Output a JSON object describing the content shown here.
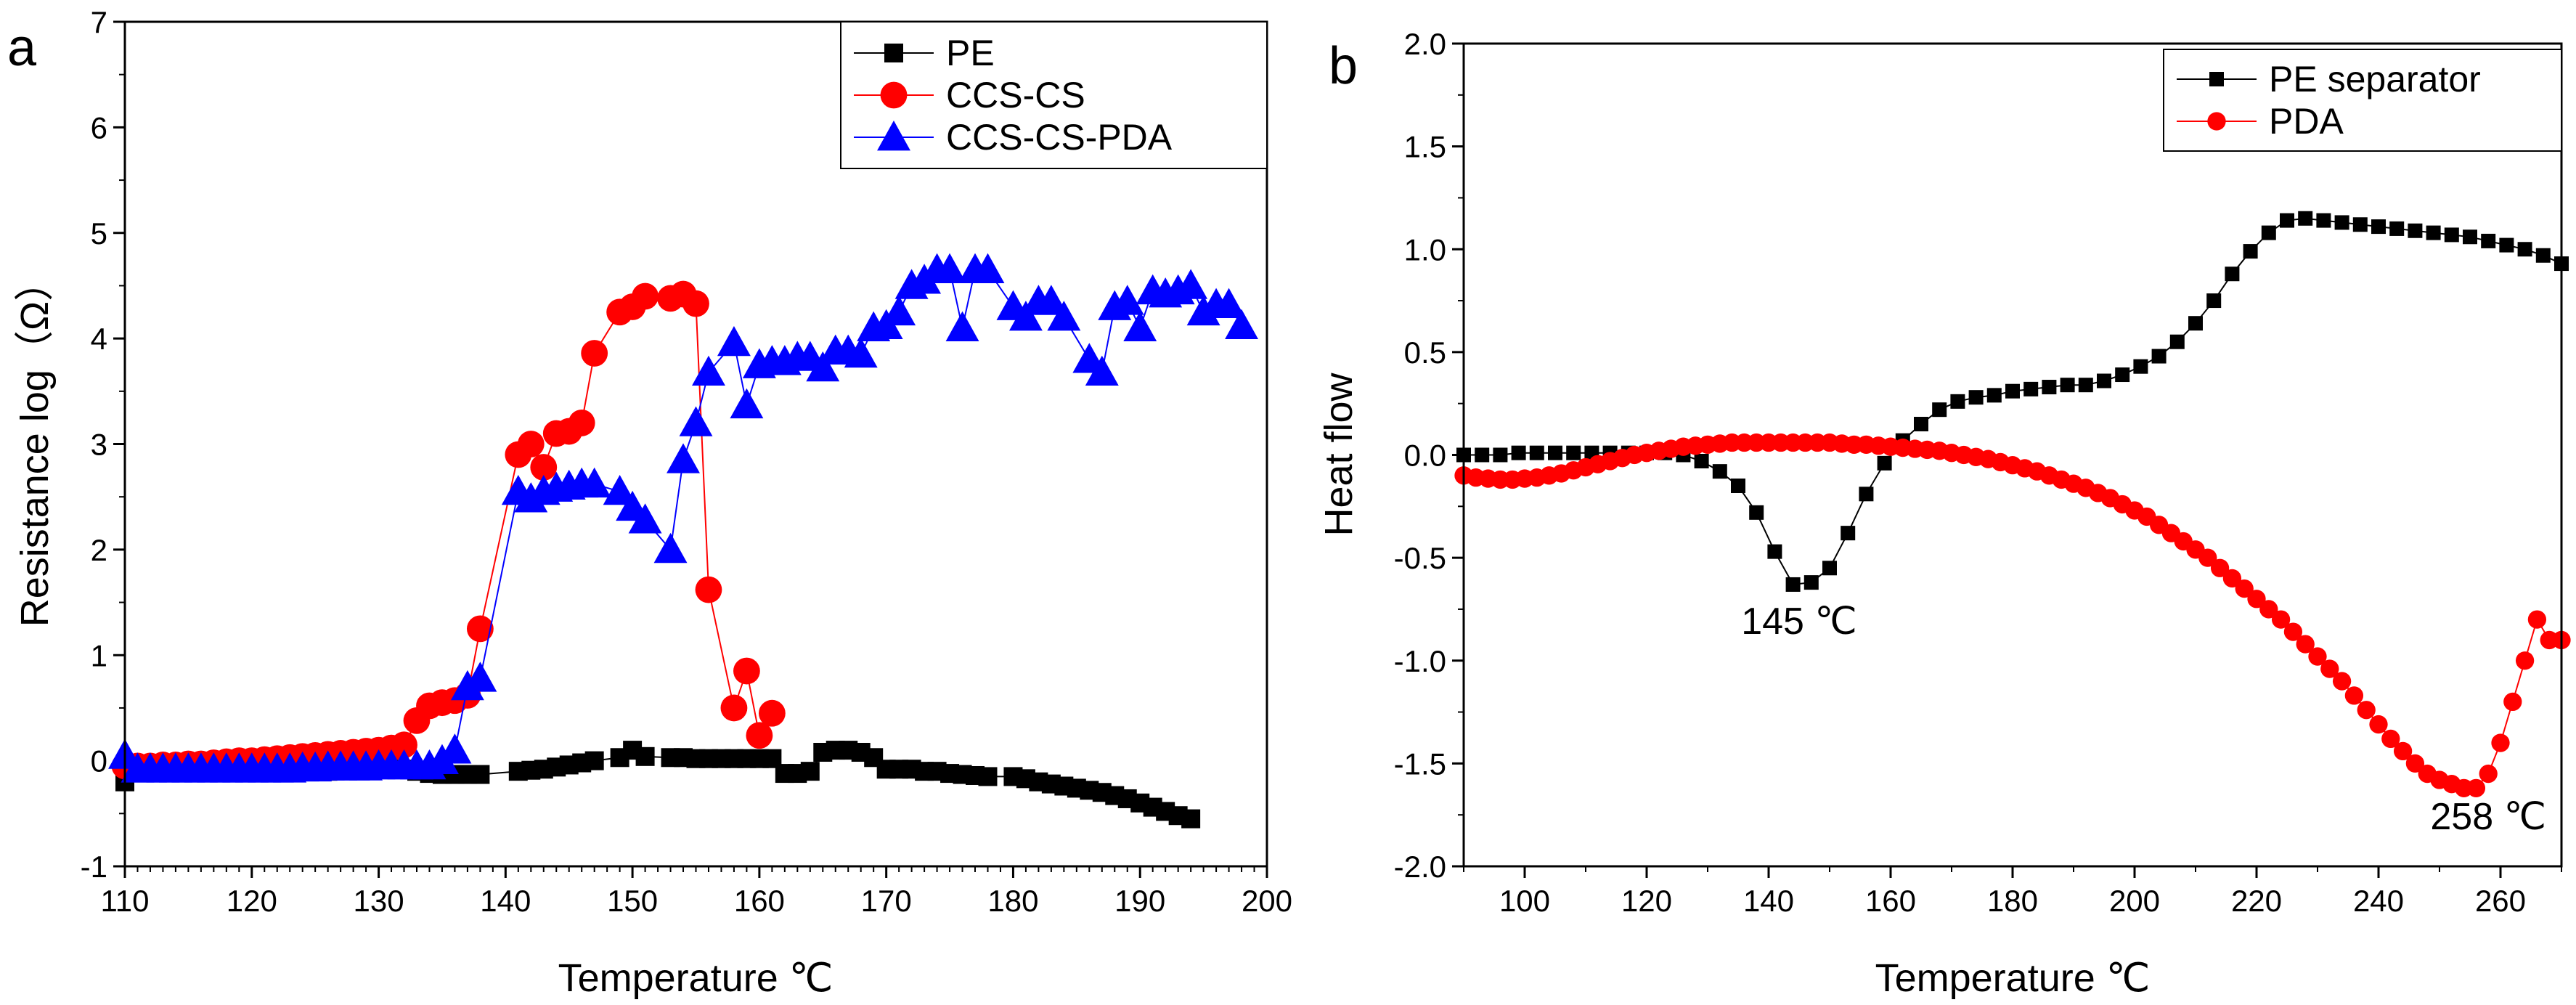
{
  "chart_data": [
    {
      "panel_label": "a",
      "type": "line",
      "title": "",
      "xlabel": "Temperature ℃",
      "ylabel": "Resistance log（Ω）",
      "xlim": [
        110,
        200
      ],
      "ylim": [
        -1,
        7
      ],
      "xticks": [
        110,
        120,
        130,
        140,
        150,
        160,
        170,
        180,
        190,
        200
      ],
      "yticks": [
        -1,
        0,
        1,
        2,
        3,
        4,
        5,
        6,
        7
      ],
      "legend_position": "top-right",
      "series": [
        {
          "name": "PE",
          "color": "#000000",
          "marker": "square",
          "x": [
            110,
            111,
            112,
            113,
            114,
            115,
            116,
            117,
            118,
            119,
            120,
            121,
            122,
            123,
            124,
            125,
            126,
            127,
            128,
            129,
            130,
            131,
            132,
            133,
            134,
            135,
            136,
            137,
            138,
            141,
            142,
            143,
            144,
            145,
            146,
            147,
            149,
            150,
            151,
            153,
            154,
            155,
            156,
            157,
            158,
            159,
            160,
            161,
            162,
            163,
            164,
            165,
            166,
            167,
            168,
            169,
            170,
            171,
            172,
            173,
            174,
            175,
            176,
            177,
            178,
            180,
            181,
            182,
            183,
            184,
            185,
            186,
            187,
            188,
            189,
            190,
            191,
            192,
            193,
            194
          ],
          "y": [
            -0.2,
            -0.1,
            -0.1,
            -0.1,
            -0.1,
            -0.1,
            -0.1,
            -0.1,
            -0.1,
            -0.1,
            -0.1,
            -0.1,
            -0.1,
            -0.1,
            -0.1,
            -0.1,
            -0.1,
            -0.08,
            -0.08,
            -0.08,
            -0.08,
            -0.08,
            -0.08,
            -0.1,
            -0.12,
            -0.13,
            -0.13,
            -0.13,
            -0.13,
            -0.1,
            -0.09,
            -0.08,
            -0.06,
            -0.04,
            -0.02,
            0.0,
            0.03,
            0.1,
            0.04,
            0.03,
            0.03,
            0.02,
            0.02,
            0.02,
            0.02,
            0.02,
            0.02,
            0.02,
            -0.12,
            -0.12,
            -0.1,
            0.08,
            0.1,
            0.1,
            0.08,
            0.03,
            -0.08,
            -0.08,
            -0.08,
            -0.1,
            -0.1,
            -0.12,
            -0.13,
            -0.14,
            -0.15,
            -0.15,
            -0.17,
            -0.2,
            -0.22,
            -0.24,
            -0.26,
            -0.28,
            -0.3,
            -0.33,
            -0.36,
            -0.4,
            -0.44,
            -0.48,
            -0.52,
            -0.55
          ]
        },
        {
          "name": "CCS-CS",
          "color": "#ff0000",
          "marker": "circle",
          "x": [
            110,
            111,
            112,
            113,
            114,
            115,
            116,
            117,
            118,
            119,
            120,
            121,
            122,
            123,
            124,
            125,
            126,
            127,
            128,
            129,
            130,
            131,
            132,
            133,
            134,
            135,
            136,
            137,
            138,
            141,
            142,
            143,
            144,
            145,
            146,
            147,
            149,
            150,
            151,
            153,
            154,
            155,
            156,
            158,
            159,
            160,
            161
          ],
          "y": [
            -0.05,
            -0.05,
            -0.05,
            -0.04,
            -0.04,
            -0.03,
            -0.03,
            -0.02,
            -0.01,
            0.0,
            0.0,
            0.01,
            0.02,
            0.03,
            0.04,
            0.05,
            0.06,
            0.07,
            0.08,
            0.09,
            0.1,
            0.12,
            0.15,
            0.38,
            0.52,
            0.55,
            0.57,
            0.62,
            1.25,
            2.9,
            3.0,
            2.78,
            3.1,
            3.12,
            3.2,
            3.86,
            4.25,
            4.3,
            4.4,
            4.38,
            4.42,
            4.33,
            1.62,
            0.5,
            0.85,
            0.24,
            0.45
          ]
        },
        {
          "name": "CCS-CS-PDA",
          "color": "#0000ff",
          "marker": "triangle",
          "x": [
            110,
            111,
            112,
            113,
            114,
            115,
            116,
            117,
            118,
            119,
            120,
            121,
            122,
            123,
            124,
            125,
            126,
            127,
            128,
            129,
            130,
            131,
            132,
            133,
            134,
            135,
            136,
            137,
            138,
            141,
            142,
            143,
            144,
            145,
            146,
            147,
            149,
            150,
            151,
            153,
            154,
            155,
            156,
            158,
            159,
            160,
            161,
            162,
            163,
            164,
            165,
            166,
            167,
            168,
            169,
            170,
            171,
            172,
            173,
            174,
            175,
            176,
            177,
            178,
            180,
            181,
            182,
            183,
            184,
            186,
            187,
            188,
            189,
            190,
            191,
            192,
            193,
            194,
            195,
            196,
            197,
            198
          ],
          "y": [
            0.05,
            -0.08,
            -0.08,
            -0.08,
            -0.08,
            -0.08,
            -0.08,
            -0.08,
            -0.08,
            -0.08,
            -0.08,
            -0.08,
            -0.08,
            -0.08,
            -0.07,
            -0.07,
            -0.06,
            -0.06,
            -0.06,
            -0.06,
            -0.05,
            -0.05,
            -0.05,
            -0.05,
            -0.05,
            0.0,
            0.1,
            0.7,
            0.78,
            2.55,
            2.48,
            2.55,
            2.58,
            2.6,
            2.62,
            2.62,
            2.55,
            2.4,
            2.28,
            2.0,
            2.85,
            3.2,
            3.68,
            3.96,
            3.37,
            3.75,
            3.78,
            3.78,
            3.82,
            3.82,
            3.72,
            3.88,
            3.88,
            3.85,
            4.1,
            4.12,
            4.25,
            4.5,
            4.55,
            4.65,
            4.65,
            4.1,
            4.65,
            4.65,
            4.3,
            4.2,
            4.35,
            4.35,
            4.2,
            3.8,
            3.68,
            4.3,
            4.35,
            4.1,
            4.45,
            4.42,
            4.45,
            4.5,
            4.25,
            4.32,
            4.32,
            4.12
          ]
        }
      ]
    },
    {
      "panel_label": "b",
      "type": "line",
      "title": "",
      "xlabel": "Temperature ℃",
      "ylabel": "Heat flow",
      "xlim": [
        90,
        270
      ],
      "ylim": [
        -2.0,
        2.0
      ],
      "xticks": [
        100,
        120,
        140,
        160,
        180,
        200,
        220,
        240,
        260
      ],
      "xtick_labels": [
        "100",
        "120",
        "140",
        "160",
        "180",
        "200",
        "220",
        "240",
        "260"
      ],
      "yticks": [
        -2.0,
        -1.5,
        -1.0,
        -0.5,
        0.0,
        0.5,
        1.0,
        1.5,
        2.0
      ],
      "ytick_labels": [
        "-2.0",
        "-1.5",
        "-1.0",
        "-0.5",
        "0.0",
        "0.5",
        "1.0",
        "1.5",
        "2.0"
      ],
      "legend_position": "top-right",
      "annotations": [
        {
          "text": "145 ℃",
          "x": 145,
          "y": -0.87
        },
        {
          "text": "258 ℃",
          "x": 258,
          "y": -1.82
        }
      ],
      "series": [
        {
          "name": "PE separator",
          "color": "#000000",
          "marker": "square",
          "x": [
            90,
            93,
            96,
            99,
            102,
            105,
            108,
            111,
            114,
            117,
            120,
            123,
            126,
            129,
            132,
            135,
            138,
            141,
            144,
            147,
            150,
            153,
            156,
            159,
            162,
            165,
            168,
            171,
            174,
            177,
            180,
            183,
            186,
            189,
            192,
            195,
            198,
            201,
            204,
            207,
            210,
            213,
            216,
            219,
            222,
            225,
            228,
            231,
            234,
            237,
            240,
            243,
            246,
            249,
            252,
            255,
            258,
            261,
            264,
            267,
            270
          ],
          "y": [
            0.0,
            0.0,
            0.0,
            0.01,
            0.01,
            0.01,
            0.01,
            0.01,
            0.01,
            0.01,
            0.01,
            0.01,
            0.0,
            -0.03,
            -0.08,
            -0.15,
            -0.28,
            -0.47,
            -0.63,
            -0.62,
            -0.55,
            -0.38,
            -0.19,
            -0.04,
            0.07,
            0.15,
            0.22,
            0.26,
            0.28,
            0.29,
            0.31,
            0.32,
            0.33,
            0.34,
            0.34,
            0.36,
            0.39,
            0.43,
            0.48,
            0.55,
            0.64,
            0.75,
            0.88,
            0.99,
            1.08,
            1.14,
            1.15,
            1.14,
            1.13,
            1.12,
            1.11,
            1.1,
            1.09,
            1.08,
            1.07,
            1.06,
            1.04,
            1.02,
            1.0,
            0.97,
            0.93
          ]
        },
        {
          "name": "PDA",
          "color": "#ff0000",
          "marker": "circle",
          "x": [
            90,
            92,
            94,
            96,
            98,
            100,
            102,
            104,
            106,
            108,
            110,
            112,
            114,
            116,
            118,
            120,
            122,
            124,
            126,
            128,
            130,
            132,
            134,
            136,
            138,
            140,
            142,
            144,
            146,
            148,
            150,
            152,
            154,
            156,
            158,
            160,
            162,
            164,
            166,
            168,
            170,
            172,
            174,
            176,
            178,
            180,
            182,
            184,
            186,
            188,
            190,
            192,
            194,
            196,
            198,
            200,
            202,
            204,
            206,
            208,
            210,
            212,
            214,
            216,
            218,
            220,
            222,
            224,
            226,
            228,
            230,
            232,
            234,
            236,
            238,
            240,
            242,
            244,
            246,
            248,
            250,
            252,
            254,
            256,
            258,
            260,
            262,
            264,
            266,
            268,
            270
          ],
          "y": [
            -0.1,
            -0.11,
            -0.115,
            -0.12,
            -0.12,
            -0.115,
            -0.11,
            -0.1,
            -0.09,
            -0.075,
            -0.06,
            -0.045,
            -0.03,
            -0.015,
            0.0,
            0.01,
            0.02,
            0.03,
            0.04,
            0.045,
            0.05,
            0.055,
            0.06,
            0.06,
            0.06,
            0.06,
            0.06,
            0.06,
            0.06,
            0.06,
            0.06,
            0.055,
            0.05,
            0.05,
            0.045,
            0.04,
            0.035,
            0.03,
            0.025,
            0.02,
            0.01,
            0.0,
            -0.01,
            -0.02,
            -0.035,
            -0.05,
            -0.065,
            -0.08,
            -0.1,
            -0.12,
            -0.14,
            -0.16,
            -0.185,
            -0.21,
            -0.24,
            -0.27,
            -0.3,
            -0.34,
            -0.38,
            -0.42,
            -0.46,
            -0.5,
            -0.55,
            -0.6,
            -0.65,
            -0.7,
            -0.75,
            -0.8,
            -0.86,
            -0.92,
            -0.98,
            -1.04,
            -1.1,
            -1.17,
            -1.24,
            -1.31,
            -1.38,
            -1.44,
            -1.5,
            -1.55,
            -1.58,
            -1.6,
            -1.62,
            -1.62,
            -1.55,
            -1.4,
            -1.2,
            -1.0,
            -0.8,
            -0.9,
            -0.9
          ]
        }
      ]
    }
  ]
}
